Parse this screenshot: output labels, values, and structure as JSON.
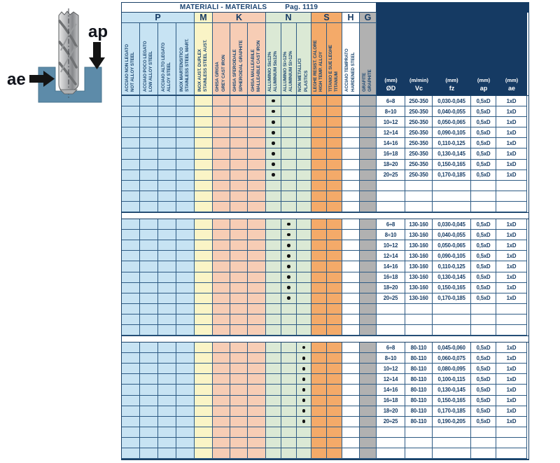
{
  "diagram": {
    "ap_label": "ap",
    "ae_label": "ae"
  },
  "table": {
    "title": "MATERIALI - MATERIALS",
    "page": "Pag. 1119",
    "groups": [
      {
        "letter": "P",
        "color": "#c7e3f3",
        "columns": [
          {
            "it": "ACCIAIO NON LEGATO",
            "en": "NOT ALLOY STEEL"
          },
          {
            "it": "ACCIAIO POCO LEGATO",
            "en": "LOW ALLOY STEEL"
          },
          {
            "it": "ACCIAIO ALTO LEGATO",
            "en": "ALLOY STEEL"
          },
          {
            "it": "INOX MARTENSITICO",
            "en": "STAINLESS STEEL MART."
          }
        ]
      },
      {
        "letter": "M",
        "color": "#faf4c6",
        "columns": [
          {
            "it": "INOX AUST. DUPLEX",
            "en": "STAINLESS STEEL AUST."
          }
        ]
      },
      {
        "letter": "K",
        "color": "#f7cdb5",
        "columns": [
          {
            "it": "GHISA GRIGIA",
            "en": "GREY CAST IRON"
          },
          {
            "it": "GHISA SFEROIDALE",
            "en": "SPHEROIDAL GRAPHITE"
          },
          {
            "it": "GHISA MALLEABILE",
            "en": "MALLEABLE CAST IRON"
          }
        ]
      },
      {
        "letter": "N",
        "color": "#dbe9d5",
        "columns": [
          {
            "it": "ALLUMINIO Si≤12%",
            "en": "ALUMINIUM Si≤12%"
          },
          {
            "it": "ALLUMINIO Si>12%",
            "en": "ALUMINIUM Si>12%"
          },
          {
            "it": "NON METALLICI",
            "en": "PLASTICS"
          }
        ]
      },
      {
        "letter": "S",
        "color": "#f4aa69",
        "columns": [
          {
            "it": "LEGHE RESIST. CALORE",
            "en": "HIGH TEMP. ALLOY"
          },
          {
            "it": "TITANIO E SUE LEGHE",
            "en": "TITANIUM"
          }
        ]
      },
      {
        "letter": "H",
        "color": "#ffffff",
        "columns": [
          {
            "it": "ACCIAIO TEMPRATO",
            "en": "HARDENED STEEL"
          }
        ]
      },
      {
        "letter": "G",
        "color": "#b1b1b1",
        "columns": [
          {
            "it": "GRAFITE",
            "en": "GRAPHITE"
          }
        ]
      }
    ],
    "params": [
      {
        "unit": "(mm)",
        "sym": "ØD"
      },
      {
        "unit": "(m/min)",
        "sym": "Vc"
      },
      {
        "unit": "(mm)",
        "sym": "fz"
      },
      {
        "unit": "(mm)",
        "sym": "ap"
      },
      {
        "unit": "(mm)",
        "sym": "ae"
      }
    ],
    "empty_rows_per_block": 3,
    "blocks": [
      {
        "dot_column_index": 8,
        "rows": [
          [
            "6÷8",
            "250-350",
            "0,030-0,045",
            "0,5xD",
            "1xD"
          ],
          [
            "8÷10",
            "250-350",
            "0,040-0,055",
            "0,5xD",
            "1xD"
          ],
          [
            "10÷12",
            "250-350",
            "0,050-0,065",
            "0,5xD",
            "1xD"
          ],
          [
            "12÷14",
            "250-350",
            "0,090-0,105",
            "0,5xD",
            "1xD"
          ],
          [
            "14÷16",
            "250-350",
            "0,110-0,125",
            "0,5xD",
            "1xD"
          ],
          [
            "16÷18",
            "250-350",
            "0,130-0,145",
            "0,5xD",
            "1xD"
          ],
          [
            "18÷20",
            "250-350",
            "0,150-0,165",
            "0,5xD",
            "1xD"
          ],
          [
            "20÷25",
            "250-350",
            "0,170-0,185",
            "0,5xD",
            "1xD"
          ]
        ]
      },
      {
        "dot_column_index": 9,
        "rows": [
          [
            "6÷8",
            "130-160",
            "0,030-0,045",
            "0,5xD",
            "1xD"
          ],
          [
            "8÷10",
            "130-160",
            "0,040-0,055",
            "0,5xD",
            "1xD"
          ],
          [
            "10÷12",
            "130-160",
            "0,050-0,065",
            "0,5xD",
            "1xD"
          ],
          [
            "12÷14",
            "130-160",
            "0,090-0,105",
            "0,5xD",
            "1xD"
          ],
          [
            "14÷16",
            "130-160",
            "0,110-0,125",
            "0,5xD",
            "1xD"
          ],
          [
            "16÷18",
            "130-160",
            "0,130-0,145",
            "0,5xD",
            "1xD"
          ],
          [
            "18÷20",
            "130-160",
            "0,150-0,165",
            "0,5xD",
            "1xD"
          ],
          [
            "20÷25",
            "130-160",
            "0,170-0,185",
            "0,5xD",
            "1xD"
          ]
        ]
      },
      {
        "dot_column_index": 10,
        "rows": [
          [
            "6÷8",
            "80-110",
            "0,045-0,060",
            "0,5xD",
            "1xD"
          ],
          [
            "8÷10",
            "80-110",
            "0,060-0,075",
            "0,5xD",
            "1xD"
          ],
          [
            "10÷12",
            "80-110",
            "0,080-0,095",
            "0,5xD",
            "1xD"
          ],
          [
            "12÷14",
            "80-110",
            "0,100-0,115",
            "0,5xD",
            "1xD"
          ],
          [
            "14÷16",
            "80-110",
            "0,130-0,145",
            "0,5xD",
            "1xD"
          ],
          [
            "16÷18",
            "80-110",
            "0,150-0,165",
            "0,5xD",
            "1xD"
          ],
          [
            "18÷20",
            "80-110",
            "0,170-0,185",
            "0,5xD",
            "1xD"
          ],
          [
            "20÷25",
            "80-110",
            "0,190-0,205",
            "0,5xD",
            "1xD"
          ]
        ]
      }
    ]
  }
}
